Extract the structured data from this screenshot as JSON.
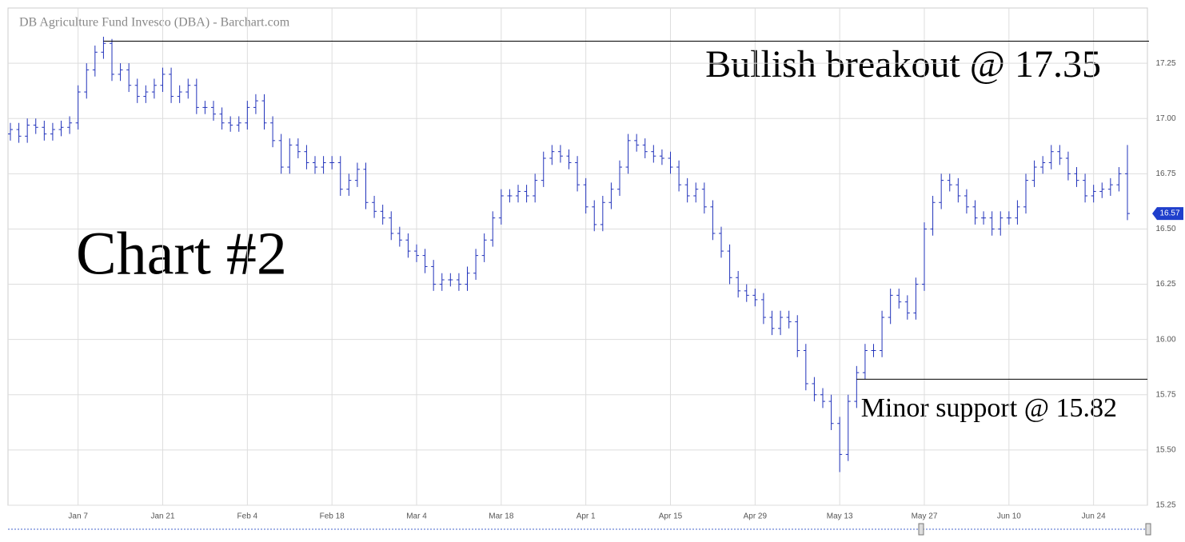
{
  "chart_data": {
    "type": "ohlc",
    "title": "DB Agriculture Fund Invesco (DBA) - Barchart.com",
    "annotation": "Chart #2",
    "breakout_text": "Bullish breakout @ 17.35",
    "breakout_level": 17.35,
    "support_text": "Minor support @ 15.82",
    "support_level": 15.82,
    "last_price": 16.57,
    "color": "#2233bb",
    "grid": true,
    "ylim": [
      15.25,
      17.5
    ],
    "yticks": [
      15.25,
      {
        "value": 15.5,
        "label": "15.50"
      },
      15.75,
      {
        "value": 16,
        "label": "16.00"
      },
      16.25,
      {
        "value": 16.5,
        "label": "16.50"
      },
      16.75,
      {
        "value": 17,
        "label": "17.00"
      },
      17.25
    ],
    "categories": [
      null,
      null,
      null,
      null,
      null,
      null,
      null,
      null,
      "Jan 7",
      null,
      null,
      null,
      null,
      null,
      null,
      null,
      null,
      null,
      "Jan 21",
      null,
      null,
      null,
      null,
      null,
      null,
      null,
      null,
      null,
      "Feb 4",
      null,
      null,
      null,
      null,
      null,
      null,
      null,
      null,
      null,
      "Feb 18",
      null,
      null,
      null,
      null,
      null,
      null,
      null,
      null,
      null,
      "Mar 4",
      null,
      null,
      null,
      null,
      null,
      null,
      null,
      null,
      null,
      "Mar 18",
      null,
      null,
      null,
      null,
      null,
      null,
      null,
      null,
      null,
      "Apr 1",
      null,
      null,
      null,
      null,
      null,
      null,
      null,
      null,
      null,
      "Apr 15",
      null,
      null,
      null,
      null,
      null,
      null,
      null,
      null,
      null,
      "Apr 29",
      null,
      null,
      null,
      null,
      null,
      null,
      null,
      null,
      null,
      "May 13",
      null,
      null,
      null,
      null,
      null,
      null,
      null,
      null,
      null,
      "May 27",
      null,
      null,
      null,
      null,
      null,
      null,
      null,
      null,
      null,
      "Jun 10",
      null,
      null,
      null,
      null,
      null,
      null,
      null,
      null,
      null,
      "Jun 24",
      null,
      null,
      null,
      null
    ],
    "open": [
      16.93,
      16.95,
      16.92,
      16.97,
      16.96,
      16.93,
      16.95,
      16.96,
      16.98,
      17.12,
      17.22,
      17.3,
      17.34,
      17.2,
      17.22,
      17.15,
      17.1,
      17.12,
      17.15,
      17.2,
      17.1,
      17.12,
      17.15,
      17.05,
      17.05,
      17.02,
      16.98,
      16.97,
      16.98,
      17.05,
      17.08,
      16.98,
      16.9,
      16.78,
      16.88,
      16.85,
      16.8,
      16.78,
      16.8,
      16.8,
      16.68,
      16.72,
      16.77,
      16.62,
      16.58,
      16.55,
      16.48,
      16.45,
      16.4,
      16.38,
      16.33,
      16.25,
      16.27,
      16.27,
      16.25,
      16.3,
      16.38,
      16.45,
      16.55,
      16.65,
      16.65,
      16.67,
      16.65,
      16.72,
      16.82,
      16.85,
      16.83,
      16.8,
      16.7,
      16.6,
      16.52,
      16.62,
      16.68,
      16.78,
      16.9,
      16.88,
      16.85,
      16.83,
      16.82,
      16.78,
      16.7,
      16.65,
      16.68,
      16.6,
      16.48,
      16.4,
      16.28,
      16.22,
      16.2,
      16.18,
      16.1,
      16.05,
      16.1,
      16.08,
      15.95,
      15.8,
      15.75,
      15.72,
      15.62,
      15.48,
      15.72,
      15.85,
      15.95,
      15.95,
      16.1,
      16.2,
      16.17,
      16.12,
      16.25,
      16.5,
      16.62,
      16.72,
      16.7,
      16.65,
      16.6,
      16.55,
      16.55,
      16.5,
      16.55,
      16.55,
      16.6,
      16.72,
      16.78,
      16.8,
      16.85,
      16.82,
      16.75,
      16.72,
      16.65,
      16.67,
      16.68,
      16.7,
      16.75
    ],
    "high": [
      16.98,
      16.98,
      17.0,
      17.0,
      16.99,
      16.98,
      16.99,
      17.01,
      17.15,
      17.25,
      17.33,
      17.37,
      17.36,
      17.25,
      17.25,
      17.18,
      17.15,
      17.18,
      17.23,
      17.23,
      17.15,
      17.18,
      17.18,
      17.08,
      17.08,
      17.05,
      17.01,
      17.01,
      17.08,
      17.11,
      17.11,
      17.01,
      16.93,
      16.91,
      16.91,
      16.88,
      16.83,
      16.83,
      16.83,
      16.83,
      16.75,
      16.8,
      16.8,
      16.65,
      16.61,
      16.58,
      16.51,
      16.48,
      16.43,
      16.41,
      16.36,
      16.3,
      16.3,
      16.3,
      16.33,
      16.41,
      16.48,
      16.58,
      16.68,
      16.68,
      16.7,
      16.7,
      16.75,
      16.85,
      16.88,
      16.88,
      16.86,
      16.83,
      16.73,
      16.63,
      16.65,
      16.71,
      16.81,
      16.93,
      16.93,
      16.91,
      16.88,
      16.86,
      16.85,
      16.81,
      16.73,
      16.71,
      16.71,
      16.63,
      16.51,
      16.43,
      16.31,
      16.25,
      16.23,
      16.21,
      16.13,
      16.13,
      16.13,
      16.11,
      15.98,
      15.83,
      15.78,
      15.75,
      15.65,
      15.75,
      15.88,
      15.98,
      15.98,
      16.13,
      16.23,
      16.23,
      16.2,
      16.28,
      16.53,
      16.65,
      16.75,
      16.75,
      16.73,
      16.68,
      16.63,
      16.58,
      16.58,
      16.58,
      16.58,
      16.63,
      16.75,
      16.81,
      16.83,
      16.88,
      16.88,
      16.85,
      16.78,
      16.75,
      16.7,
      16.71,
      16.73,
      16.78,
      16.88
    ],
    "low": [
      16.9,
      16.89,
      16.89,
      16.93,
      16.9,
      16.9,
      16.92,
      16.93,
      16.95,
      17.09,
      17.19,
      17.27,
      17.17,
      17.17,
      17.12,
      17.07,
      17.07,
      17.09,
      17.12,
      17.07,
      17.07,
      17.09,
      17.02,
      17.02,
      16.99,
      16.95,
      16.94,
      16.94,
      16.95,
      17.02,
      16.95,
      16.87,
      16.75,
      16.75,
      16.82,
      16.77,
      16.75,
      16.75,
      16.77,
      16.65,
      16.65,
      16.69,
      16.59,
      16.55,
      16.52,
      16.45,
      16.42,
      16.37,
      16.35,
      16.3,
      16.22,
      16.22,
      16.24,
      16.22,
      16.22,
      16.27,
      16.35,
      16.42,
      16.52,
      16.62,
      16.62,
      16.62,
      16.62,
      16.69,
      16.79,
      16.8,
      16.77,
      16.67,
      16.57,
      16.49,
      16.49,
      16.59,
      16.65,
      16.75,
      16.85,
      16.82,
      16.8,
      16.79,
      16.75,
      16.67,
      16.62,
      16.62,
      16.57,
      16.45,
      16.37,
      16.25,
      16.19,
      16.17,
      16.15,
      16.07,
      16.02,
      16.02,
      16.05,
      15.92,
      15.77,
      15.72,
      15.69,
      15.59,
      15.4,
      15.45,
      15.69,
      15.82,
      15.92,
      15.92,
      16.07,
      16.14,
      16.09,
      16.09,
      16.22,
      16.47,
      16.59,
      16.67,
      16.62,
      16.57,
      16.52,
      16.52,
      16.47,
      16.47,
      16.52,
      16.52,
      16.57,
      16.69,
      16.75,
      16.77,
      16.79,
      16.72,
      16.69,
      16.62,
      16.62,
      16.64,
      16.65,
      16.67,
      16.54
    ],
    "close": [
      16.95,
      16.92,
      16.97,
      16.96,
      16.93,
      16.95,
      16.96,
      16.98,
      17.12,
      17.22,
      17.3,
      17.34,
      17.2,
      17.22,
      17.15,
      17.1,
      17.12,
      17.15,
      17.2,
      17.1,
      17.12,
      17.15,
      17.05,
      17.05,
      17.02,
      16.98,
      16.97,
      16.98,
      17.05,
      17.08,
      16.98,
      16.9,
      16.78,
      16.88,
      16.85,
      16.8,
      16.78,
      16.8,
      16.8,
      16.68,
      16.72,
      16.77,
      16.62,
      16.58,
      16.55,
      16.48,
      16.45,
      16.4,
      16.38,
      16.33,
      16.25,
      16.27,
      16.27,
      16.25,
      16.3,
      16.38,
      16.45,
      16.55,
      16.65,
      16.65,
      16.67,
      16.65,
      16.72,
      16.82,
      16.85,
      16.83,
      16.8,
      16.7,
      16.6,
      16.52,
      16.62,
      16.68,
      16.78,
      16.9,
      16.88,
      16.85,
      16.83,
      16.82,
      16.78,
      16.7,
      16.65,
      16.68,
      16.6,
      16.48,
      16.4,
      16.28,
      16.22,
      16.2,
      16.18,
      16.1,
      16.05,
      16.1,
      16.08,
      15.95,
      15.8,
      15.75,
      15.72,
      15.62,
      15.48,
      15.72,
      15.85,
      15.95,
      15.95,
      16.1,
      16.2,
      16.17,
      16.12,
      16.25,
      16.5,
      16.62,
      16.72,
      16.7,
      16.65,
      16.6,
      16.55,
      16.55,
      16.5,
      16.55,
      16.55,
      16.6,
      16.72,
      16.78,
      16.8,
      16.85,
      16.82,
      16.75,
      16.72,
      16.65,
      16.67,
      16.68,
      16.7,
      16.75,
      16.57
    ]
  }
}
